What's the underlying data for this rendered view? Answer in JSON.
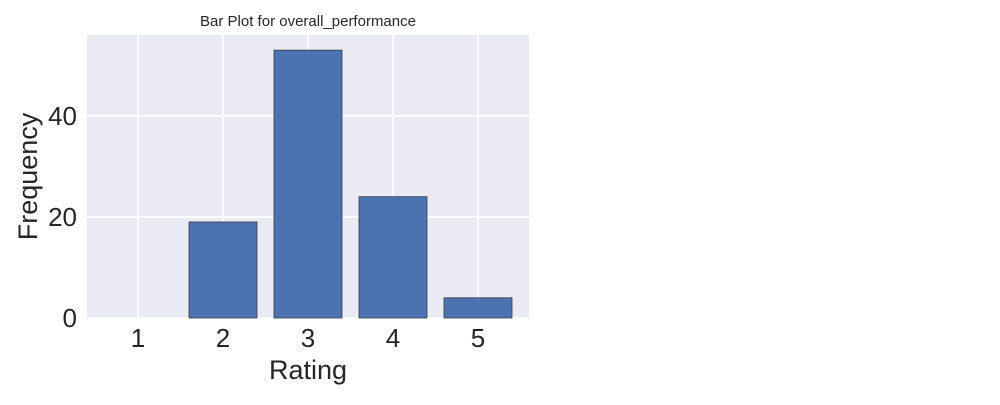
{
  "chart_data": {
    "type": "bar",
    "title": "Bar Plot for overall_performance",
    "xlabel": "Rating",
    "ylabel": "Frequency",
    "categories": [
      "1",
      "2",
      "3",
      "4",
      "5"
    ],
    "values": [
      0,
      19,
      53,
      24,
      4
    ],
    "yticks": [
      "0",
      "20",
      "40"
    ],
    "ylim": [
      0,
      56
    ],
    "grid": true,
    "colors": {
      "bar_fill": "#4c72b0",
      "bar_edge": "#3a3a4a",
      "plot_background": "#eaeaf2",
      "grid": "#ffffff"
    }
  }
}
